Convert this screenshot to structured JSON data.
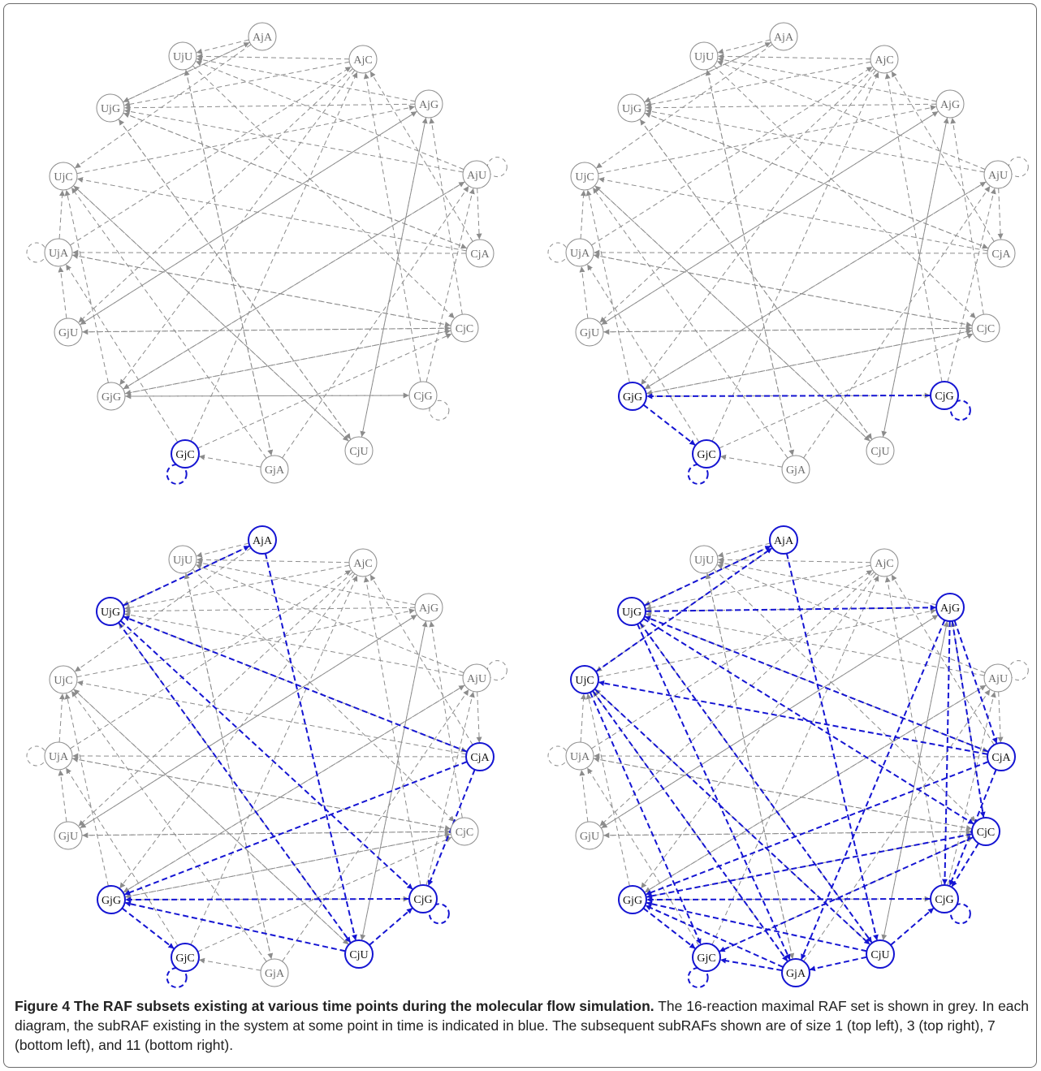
{
  "caption": {
    "figure_label": "Figure 4",
    "title": "The RAF subsets existing at various time points during the molecular flow simulation.",
    "body": "The 16-reaction maximal RAF set is shown in grey. In each diagram, the subRAF existing in the system at some point in time is indicated in blue. The subsequent subRAFs shown are of size 1 (top left), 3 (top right), 7 (bottom left), and 11 (bottom right)."
  },
  "colors": {
    "grey": "#8c8c8c",
    "blue": "#1414d2",
    "text_grey": "#6e6e6e",
    "text_dark": "#111111"
  },
  "nodes": [
    {
      "id": "AjA",
      "label": "AjA"
    },
    {
      "id": "AjC",
      "label": "AjC"
    },
    {
      "id": "AjG",
      "label": "AjG"
    },
    {
      "id": "AjU",
      "label": "AjU"
    },
    {
      "id": "CjA",
      "label": "CjA"
    },
    {
      "id": "CjC",
      "label": "CjC"
    },
    {
      "id": "CjG",
      "label": "CjG"
    },
    {
      "id": "CjU",
      "label": "CjU"
    },
    {
      "id": "GjA",
      "label": "GjA"
    },
    {
      "id": "GjC",
      "label": "GjC"
    },
    {
      "id": "GjG",
      "label": "GjG"
    },
    {
      "id": "GjU",
      "label": "GjU"
    },
    {
      "id": "UjA",
      "label": "UjA"
    },
    {
      "id": "UjC",
      "label": "UjC"
    },
    {
      "id": "UjG",
      "label": "UjG"
    },
    {
      "id": "UjU",
      "label": "UjU"
    }
  ],
  "grey_edges": [
    [
      "AjA",
      "UjU"
    ],
    [
      "AjA",
      "UjG"
    ],
    [
      "AjA",
      "UjC"
    ],
    [
      "AjC",
      "UjU"
    ],
    [
      "AjC",
      "UjG"
    ],
    [
      "AjC",
      "GjU"
    ],
    [
      "AjC",
      "GjG"
    ],
    [
      "AjG",
      "UjU"
    ],
    [
      "AjG",
      "UjG"
    ],
    [
      "AjG",
      "GjU"
    ],
    [
      "AjG",
      "CjU"
    ],
    [
      "AjU",
      "UjU"
    ],
    [
      "AjU",
      "UjG"
    ],
    [
      "AjU",
      "GjG"
    ],
    [
      "CjA",
      "UjC"
    ],
    [
      "CjA",
      "UjG"
    ],
    [
      "CjA",
      "UjA"
    ],
    [
      "CjA",
      "AjC"
    ],
    [
      "CjC",
      "UjA"
    ],
    [
      "CjC",
      "AjG"
    ],
    [
      "CjC",
      "GjG"
    ],
    [
      "CjC",
      "GjU"
    ],
    [
      "CjG",
      "AjU"
    ],
    [
      "CjG",
      "AjC"
    ],
    [
      "CjG",
      "GjG"
    ],
    [
      "CjU",
      "AjG"
    ],
    [
      "CjU",
      "UjG"
    ],
    [
      "CjU",
      "UjC"
    ],
    [
      "GjA",
      "UjU"
    ],
    [
      "GjA",
      "UjC"
    ],
    [
      "GjA",
      "AjU"
    ],
    [
      "GjA",
      "GjC"
    ],
    [
      "GjC",
      "UjA"
    ],
    [
      "GjC",
      "AjC"
    ],
    [
      "GjC",
      "CjC"
    ],
    [
      "GjG",
      "UjC"
    ],
    [
      "GjG",
      "AjU"
    ],
    [
      "GjG",
      "CjC"
    ],
    [
      "GjU",
      "AjG"
    ],
    [
      "GjU",
      "CjC"
    ],
    [
      "GjU",
      "UjA"
    ],
    [
      "UjA",
      "AjC"
    ],
    [
      "UjA",
      "UjC"
    ],
    [
      "UjA",
      "CjC"
    ],
    [
      "UjC",
      "AjG"
    ],
    [
      "UjC",
      "CjU"
    ],
    [
      "UjG",
      "AjA"
    ],
    [
      "UjG",
      "CjA"
    ],
    [
      "UjG",
      "CjU"
    ],
    [
      "UjU",
      "CjC"
    ],
    [
      "UjU",
      "GjA"
    ],
    [
      "AjU",
      "CjA"
    ],
    [
      "GjG",
      "CjG"
    ]
  ],
  "grey_loops": [
    "AjU",
    "UjA",
    "CjG",
    "GjC"
  ],
  "panels": [
    {
      "name": "size-1",
      "blue_nodes": [
        "GjC"
      ],
      "blue_edges": [],
      "blue_loops": [
        "GjC"
      ]
    },
    {
      "name": "size-3",
      "blue_nodes": [
        "GjC",
        "GjG",
        "CjG"
      ],
      "blue_edges": [
        [
          "CjG",
          "GjG"
        ],
        [
          "GjG",
          "GjC"
        ]
      ],
      "blue_loops": [
        "GjC",
        "CjG"
      ]
    },
    {
      "name": "size-7",
      "blue_nodes": [
        "AjA",
        "UjG",
        "CjA",
        "CjG",
        "CjU",
        "GjG",
        "GjC"
      ],
      "blue_edges": [
        [
          "UjG",
          "AjA"
        ],
        [
          "AjA",
          "CjU"
        ],
        [
          "CjA",
          "UjG"
        ],
        [
          "UjG",
          "CjG"
        ],
        [
          "UjG",
          "CjU"
        ],
        [
          "CjA",
          "GjG"
        ],
        [
          "CjA",
          "CjG"
        ],
        [
          "CjG",
          "GjG"
        ],
        [
          "CjU",
          "GjG"
        ],
        [
          "GjG",
          "GjC"
        ],
        [
          "CjU",
          "CjG"
        ]
      ],
      "blue_loops": [
        "GjC",
        "CjG"
      ]
    },
    {
      "name": "size-11",
      "blue_nodes": [
        "AjA",
        "UjG",
        "AjG",
        "UjC",
        "CjA",
        "CjC",
        "CjG",
        "CjU",
        "GjA",
        "GjG",
        "GjC"
      ],
      "blue_edges": [
        [
          "UjG",
          "AjA"
        ],
        [
          "UjC",
          "AjA"
        ],
        [
          "AjA",
          "CjU"
        ],
        [
          "UjG",
          "AjG"
        ],
        [
          "CjA",
          "UjG"
        ],
        [
          "CjA",
          "UjC"
        ],
        [
          "AjG",
          "CjA"
        ],
        [
          "AjG",
          "CjC"
        ],
        [
          "AjG",
          "CjG"
        ],
        [
          "UjG",
          "CjC"
        ],
        [
          "UjG",
          "CjU"
        ],
        [
          "UjG",
          "GjA"
        ],
        [
          "UjC",
          "CjU"
        ],
        [
          "UjC",
          "GjA"
        ],
        [
          "UjC",
          "GjC"
        ],
        [
          "CjA",
          "GjG"
        ],
        [
          "CjA",
          "CjG"
        ],
        [
          "CjC",
          "GjG"
        ],
        [
          "CjC",
          "GjC"
        ],
        [
          "CjC",
          "CjG"
        ],
        [
          "CjG",
          "GjG"
        ],
        [
          "CjU",
          "GjG"
        ],
        [
          "CjU",
          "CjG"
        ],
        [
          "GjA",
          "GjG"
        ],
        [
          "GjG",
          "GjC"
        ],
        [
          "GjA",
          "GjC"
        ],
        [
          "CjU",
          "GjA"
        ],
        [
          "AjG",
          "GjA"
        ]
      ],
      "blue_loops": [
        "GjC",
        "CjG"
      ]
    }
  ]
}
